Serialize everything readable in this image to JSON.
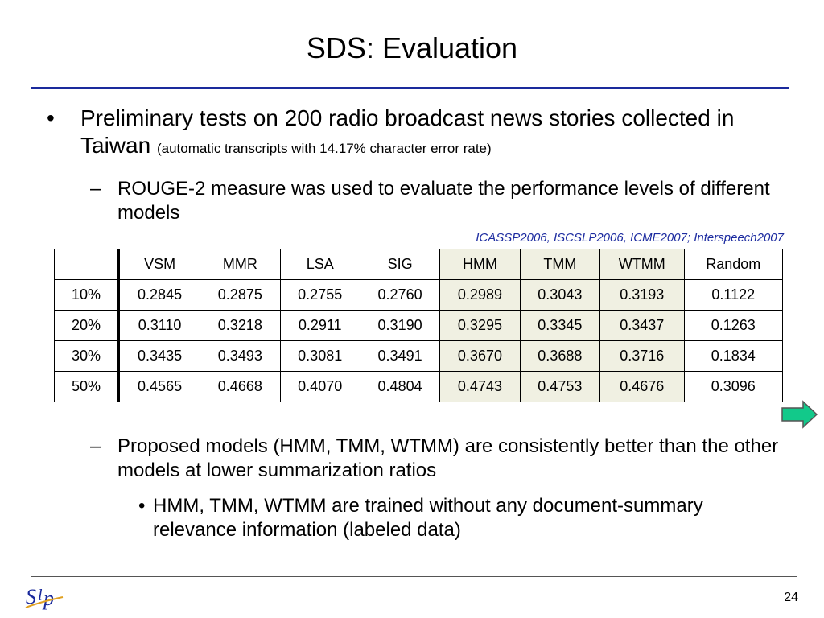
{
  "slide": {
    "title": "SDS: Evaluation",
    "page_number": "24",
    "logo_text": "SLP"
  },
  "bullets": {
    "main_text": "Preliminary tests on 200 radio broadcast news stories collected in Taiwan",
    "main_note": "(automatic transcripts with 14.17% character error rate)",
    "sub1": "ROUGE-2 measure was used to evaluate the performance levels of different models",
    "sub2": "Proposed models (HMM, TMM, WTMM) are consistently better than the other models at lower summarization ratios",
    "subsub1": "HMM, TMM, WTMM are trained without any document-summary relevance information (labeled data)"
  },
  "reference": "ICASSP2006, ISCSLP2006, ICME2007; Interspeech2007",
  "table": {
    "headers": [
      "",
      "VSM",
      "MMR",
      "LSA",
      "SIG",
      "HMM",
      "TMM",
      "WTMM",
      "Random"
    ],
    "rows": [
      [
        "10%",
        "0.2845",
        "0.2875",
        "0.2755",
        "0.2760",
        "0.2989",
        "0.3043",
        "0.3193",
        "0.1122"
      ],
      [
        "20%",
        "0.3110",
        "0.3218",
        "0.2911",
        "0.3190",
        "0.3295",
        "0.3345",
        "0.3437",
        "0.1263"
      ],
      [
        "30%",
        "0.3435",
        "0.3493",
        "0.3081",
        "0.3491",
        "0.3670",
        "0.3688",
        "0.3716",
        "0.1834"
      ],
      [
        "50%",
        "0.4565",
        "0.4668",
        "0.4070",
        "0.4804",
        "0.4743",
        "0.4753",
        "0.4676",
        "0.3096"
      ]
    ],
    "highlight_color": "#f0f0e2"
  },
  "colors": {
    "title_rule": "#1a2a9c",
    "reference_text": "#1c2ba0",
    "arrow_fill": "#12c98a"
  },
  "icons": {
    "next_arrow": "right-arrow-icon"
  }
}
